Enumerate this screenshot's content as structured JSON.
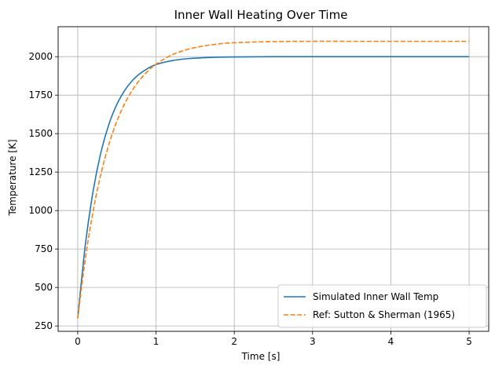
{
  "chart_data": {
    "type": "line",
    "title": "Inner Wall Heating Over Time",
    "xlabel": "Time [s]",
    "ylabel": "Temperature [K]",
    "xlim": [
      -0.25,
      5.25
    ],
    "ylim": [
      215,
      2195
    ],
    "xticks": [
      0,
      1,
      2,
      3,
      4,
      5
    ],
    "yticks": [
      250,
      500,
      750,
      1000,
      1250,
      1500,
      1750,
      2000
    ],
    "grid": true,
    "legend_position": "lower-right",
    "series": [
      {
        "name": "Simulated Inner Wall Temp",
        "color": "#1f77b4",
        "style": "solid",
        "x": [
          0,
          0.1,
          0.2,
          0.3,
          0.4,
          0.5,
          0.6,
          0.7,
          0.8,
          0.9,
          1.0,
          1.2,
          1.4,
          1.6,
          1.8,
          2.0,
          2.5,
          3.0,
          3.5,
          4.0,
          4.5,
          5.0
        ],
        "y": [
          300,
          788,
          1136,
          1385,
          1563,
          1690,
          1781,
          1846,
          1892,
          1925,
          1949,
          1974,
          1987,
          1993,
          1997,
          1998,
          2000,
          2000,
          2000,
          2000,
          2000,
          2000
        ]
      },
      {
        "name": "Ref: Sutton & Sherman (1965)",
        "color": "#ff7f0e",
        "style": "dashed",
        "x": [
          0,
          0.1,
          0.2,
          0.3,
          0.4,
          0.5,
          0.6,
          0.7,
          0.8,
          0.9,
          1.0,
          1.2,
          1.4,
          1.6,
          1.8,
          2.0,
          2.5,
          3.0,
          3.5,
          4.0,
          4.5,
          5.0
        ],
        "y": [
          300,
          695,
          1004,
          1245,
          1433,
          1580,
          1695,
          1784,
          1854,
          1908,
          1951,
          2011,
          2047,
          2069,
          2083,
          2091,
          2098,
          2100,
          2100,
          2100,
          2100,
          2100
        ]
      }
    ]
  }
}
